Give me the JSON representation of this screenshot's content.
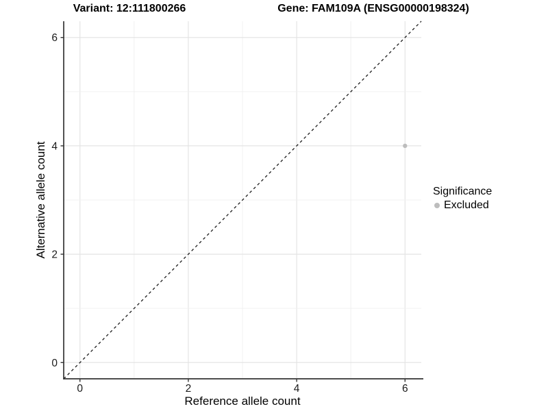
{
  "figure": {
    "title_left": "Variant: 12:111800266",
    "title_right": "Gene: FAM109A (ENSG00000198324)"
  },
  "chart_data": {
    "type": "scatter",
    "xlabel": "Reference allele count",
    "ylabel": "Alternative allele count",
    "xlim": [
      -0.3,
      6.3
    ],
    "ylim": [
      -0.3,
      6.3
    ],
    "x_ticks": [
      0,
      2,
      4,
      6
    ],
    "y_ticks": [
      0,
      2,
      4,
      6
    ],
    "grid": "major_and_minor_every_1",
    "legend_position": "right",
    "series": [
      {
        "name": "Excluded",
        "color": "#bdbdbd",
        "points": [
          {
            "x": 6,
            "y": 4
          }
        ]
      }
    ],
    "identity_line": {
      "style": "dashed",
      "from": -0.3,
      "to": 6.3
    }
  },
  "legend": {
    "title": "Significance",
    "items": [
      {
        "label": "Excluded",
        "color": "#bdbdbd"
      }
    ]
  },
  "colors": {
    "background": "#ffffff",
    "axis_line": "#333333",
    "tick_mark": "#333333",
    "tick_label": "#1a1a1a",
    "grid_major": "#e4e4e4",
    "grid_minor": "#f0f0f0",
    "identity_line": "#1a1a1a",
    "point": "#bdbdbd"
  }
}
